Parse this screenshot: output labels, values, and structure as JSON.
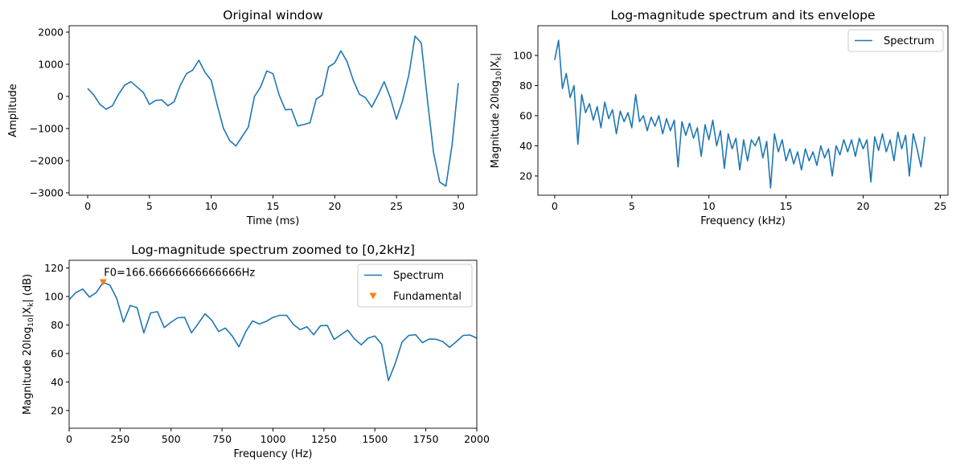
{
  "chart_data": [
    {
      "type": "line",
      "title": "Original window",
      "xlabel": "Time (ms)",
      "ylabel": "Amplitude",
      "xlim": [
        -1.5,
        31.5
      ],
      "ylim": [
        -3075,
        2200
      ],
      "xticks": [
        0,
        5,
        10,
        15,
        20,
        25,
        30
      ],
      "yticks": [
        -3000,
        -2000,
        -1000,
        0,
        1000,
        2000
      ],
      "color": "#1f77b4",
      "x": [
        0,
        0.5,
        1,
        1.5,
        2,
        2.5,
        3,
        3.5,
        4,
        4.5,
        5,
        5.5,
        6,
        6.5,
        7,
        7.5,
        8,
        8.5,
        9,
        9.5,
        10,
        10.5,
        11,
        11.5,
        12,
        12.5,
        13,
        13.5,
        14,
        14.5,
        15,
        15.5,
        16,
        16.5,
        17,
        17.5,
        18,
        18.5,
        19,
        19.5,
        20,
        20.5,
        21,
        21.5,
        22,
        22.5,
        23,
        23.5,
        24,
        24.5,
        25,
        25.5,
        26,
        26.5,
        27,
        27.5,
        28,
        28.5,
        29,
        29.5,
        30
      ],
      "y": [
        250,
        42,
        -250,
        -400,
        -290,
        67,
        350,
        458,
        292,
        125,
        -250,
        -125,
        -108,
        -290,
        -167,
        350,
        708,
        817,
        1125,
        750,
        500,
        -290,
        -1000,
        -1375,
        -1542,
        -1250,
        -958,
        0,
        292,
        792,
        708,
        42,
        -417,
        -400,
        -917,
        -875,
        -817,
        -83,
        42,
        917,
        1042,
        1417,
        1083,
        500,
        67,
        -42,
        -333,
        42,
        458,
        -42,
        -708,
        -125,
        667,
        1875,
        1667,
        -83,
        -1750,
        -2667,
        -2792,
        -1500,
        417
      ]
    },
    {
      "type": "line",
      "title": "Log-magnitude spectrum and its envelope",
      "xlabel": "Frequency (kHz)",
      "ylabel": "Magnitude 20log10|Xk|",
      "ylabel_parts": [
        [
          "Magnitude 20log",
          ""
        ],
        [
          "10",
          "sub"
        ],
        [
          "|X",
          ""
        ],
        [
          "k",
          "sub"
        ],
        [
          "|",
          ""
        ]
      ],
      "xlim": [
        -1.09,
        25.5
      ],
      "ylim": [
        7.2,
        119.7
      ],
      "xticks": [
        0,
        5,
        10,
        15,
        20,
        25
      ],
      "yticks": [
        20,
        40,
        60,
        80,
        100
      ],
      "legend": {
        "position": "top-right",
        "entries": [
          "Spectrum"
        ]
      },
      "color": "#1f77b4",
      "x_step": 0.25,
      "y": [
        97,
        110,
        78,
        88,
        72,
        80,
        41,
        74,
        62,
        68,
        57,
        66,
        52,
        69,
        58,
        64,
        48,
        63,
        56,
        62,
        52,
        74,
        56,
        60,
        50,
        59,
        53,
        60,
        48,
        58,
        50,
        57,
        26,
        56,
        47,
        55,
        45,
        52,
        33,
        54,
        44,
        57,
        40,
        50,
        25,
        48,
        38,
        45,
        24,
        44,
        30,
        44,
        40,
        46,
        32,
        43,
        12,
        48,
        36,
        44,
        30,
        38,
        28,
        36,
        24,
        38,
        30,
        36,
        27,
        40,
        32,
        38,
        20,
        40,
        34,
        44,
        36,
        44,
        33,
        45,
        38,
        44,
        16,
        46,
        37,
        48,
        36,
        44,
        30,
        49,
        38,
        47,
        20,
        48,
        38,
        26,
        46
      ]
    },
    {
      "type": "line",
      "title": "Log-magnitude spectrum zoomed to [0,2kHz]",
      "xlabel": "Frequency (Hz)",
      "ylabel": "Magnitude 20log10|Xk| (dB)",
      "ylabel_parts": [
        [
          "Magnitude 20log",
          ""
        ],
        [
          "10",
          "sub"
        ],
        [
          "|X",
          ""
        ],
        [
          "k",
          "sub"
        ],
        [
          "| (dB)",
          ""
        ]
      ],
      "xlim": [
        0,
        2000
      ],
      "ylim": [
        7.6,
        125.4
      ],
      "xticks": [
        0,
        250,
        500,
        750,
        1000,
        1250,
        1500,
        1750,
        2000
      ],
      "yticks": [
        20,
        40,
        60,
        80,
        100,
        120
      ],
      "legend": {
        "position": "top-right",
        "entries": [
          "Spectrum",
          "Fundamental"
        ]
      },
      "color": "#1f77b4",
      "marker_color": "#ff7f0e",
      "x_step": 33.3333,
      "y": [
        97.8,
        102.8,
        105.2,
        99.6,
        102.8,
        109.9,
        108,
        98.7,
        82,
        93.7,
        92.2,
        74.5,
        88.5,
        89.4,
        78.2,
        82,
        85.1,
        85.3,
        74.5,
        81,
        87.9,
        83.3,
        75.4,
        77.9,
        72.3,
        64.7,
        75.4,
        82.9,
        80.7,
        82.5,
        85.3,
        86.8,
        86.8,
        80.5,
        76.7,
        78.8,
        73.2,
        79.5,
        79.7,
        69.9,
        73.2,
        76.4,
        70.2,
        66.1,
        70.8,
        72.3,
        66.5,
        41,
        53.1,
        68,
        72.7,
        73.2,
        67.6,
        70.2,
        70,
        68.4,
        64.3,
        68.4,
        72.7,
        73,
        70.8
      ],
      "fundamental": {
        "x": 166.6667,
        "y": 109.9
      },
      "annotation": "F0=166.66666666666666Hz"
    }
  ]
}
